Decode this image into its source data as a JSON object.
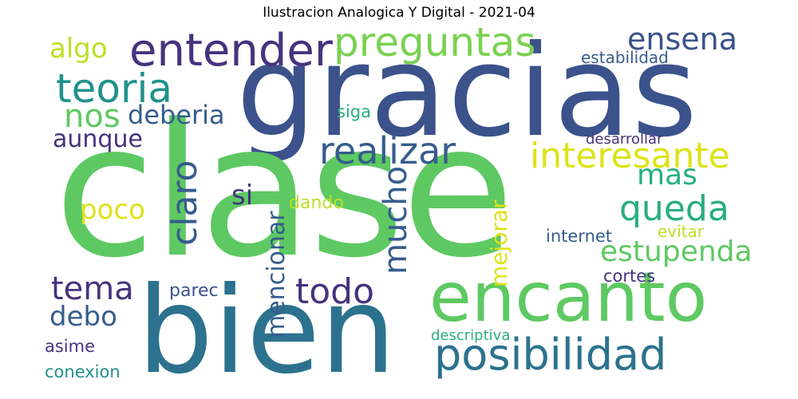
{
  "title": "Ilustracion Analogica Y Digital - 2021-04",
  "palette": {
    "dark_purple": "#46337e",
    "indigo": "#3b528b",
    "blue": "#365c8d",
    "teal_blue": "#2c728e",
    "teal": "#21918c",
    "sea_green": "#28ae80",
    "green": "#5ec962",
    "light_green": "#7ad151",
    "yellow_green": "#bddf26",
    "yellow": "#dde318"
  },
  "words": [
    {
      "text": "gracias",
      "color": "#3b528b"
    },
    {
      "text": "clase",
      "color": "#5ec962"
    },
    {
      "text": "bien",
      "color": "#2c728e"
    },
    {
      "text": "encanto",
      "color": "#5ec962"
    },
    {
      "text": "posibilidad",
      "color": "#2c728e"
    },
    {
      "text": "entender",
      "color": "#46337e"
    },
    {
      "text": "preguntas",
      "color": "#7ad151"
    },
    {
      "text": "ensena",
      "color": "#3b528b"
    },
    {
      "text": "algo",
      "color": "#bddf26"
    },
    {
      "text": "teoria",
      "color": "#21918c"
    },
    {
      "text": "nos",
      "color": "#5ec962"
    },
    {
      "text": "deberia",
      "color": "#365c8d"
    },
    {
      "text": "aunque",
      "color": "#46337e"
    },
    {
      "text": "realizar",
      "color": "#365c8d"
    },
    {
      "text": "interesante",
      "color": "#dde318"
    },
    {
      "text": "estabilidad",
      "color": "#365c8d"
    },
    {
      "text": "siga",
      "color": "#28ae80"
    },
    {
      "text": "desarrollar",
      "color": "#46337e"
    },
    {
      "text": "mas",
      "color": "#28ae80"
    },
    {
      "text": "queda",
      "color": "#28ae80"
    },
    {
      "text": "estupenda",
      "color": "#5ec962"
    },
    {
      "text": "claro",
      "color": "#365c8d"
    },
    {
      "text": "si",
      "color": "#46337e"
    },
    {
      "text": "poco",
      "color": "#dde318"
    },
    {
      "text": "mucho",
      "color": "#365c8d"
    },
    {
      "text": "mencionar",
      "color": "#365c8d"
    },
    {
      "text": "dando",
      "color": "#bddf26"
    },
    {
      "text": "mejorar",
      "color": "#dde318"
    },
    {
      "text": "internet",
      "color": "#365c8d"
    },
    {
      "text": "evitar",
      "color": "#bddf26"
    },
    {
      "text": "tema",
      "color": "#46337e"
    },
    {
      "text": "todo",
      "color": "#46337e"
    },
    {
      "text": "parec",
      "color": "#3b528b"
    },
    {
      "text": "cortes",
      "color": "#46337e"
    },
    {
      "text": "debo",
      "color": "#365c8d"
    },
    {
      "text": "descriptiva",
      "color": "#28ae80"
    },
    {
      "text": "asime",
      "color": "#46337e"
    },
    {
      "text": "conexion",
      "color": "#21918c"
    }
  ]
}
